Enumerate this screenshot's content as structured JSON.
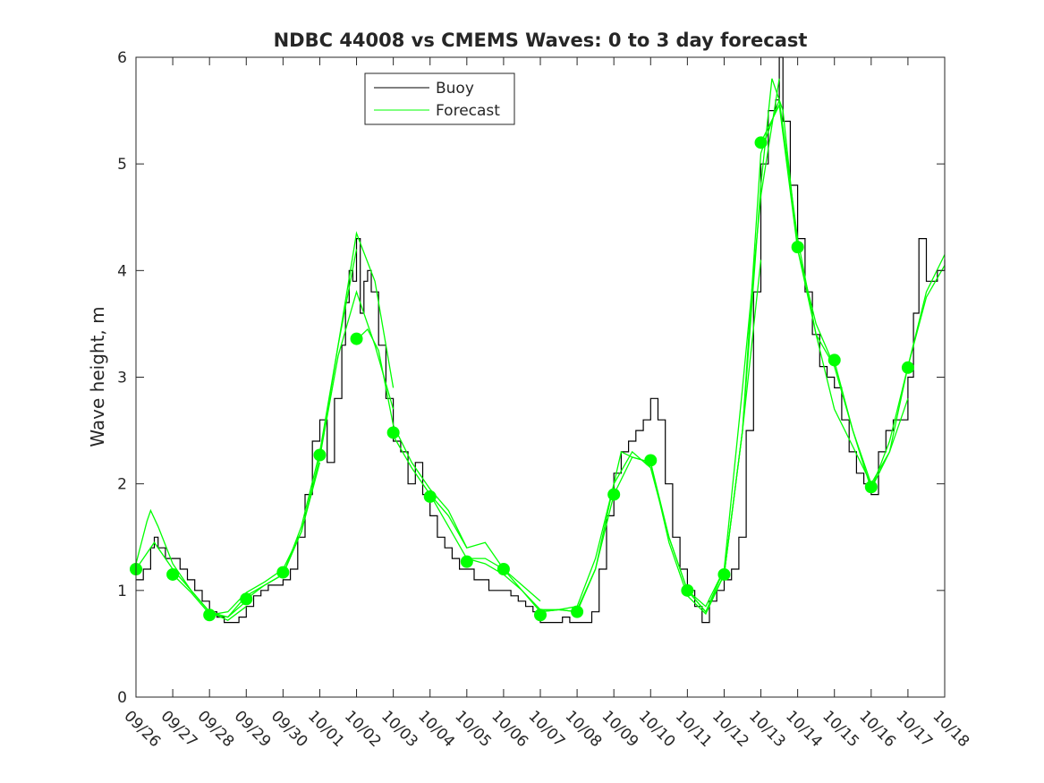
{
  "chart_data": {
    "type": "line",
    "title": "NDBC 44008 vs CMEMS Waves: 0 to 3 day forecast",
    "xlabel": "",
    "ylabel": "Wave height, m",
    "xlim": [
      0,
      22
    ],
    "ylim": [
      0,
      6
    ],
    "x_ticks": [
      "09/26",
      "09/27",
      "09/28",
      "09/29",
      "09/30",
      "10/01",
      "10/02",
      "10/03",
      "10/04",
      "10/05",
      "10/06",
      "10/07",
      "10/08",
      "10/09",
      "10/10",
      "10/11",
      "10/12",
      "10/13",
      "10/14",
      "10/15",
      "10/16",
      "10/17",
      "10/18"
    ],
    "y_ticks": [
      "0",
      "1",
      "2",
      "3",
      "4",
      "5",
      "6"
    ],
    "x_unit": "days since 09/26",
    "legend": {
      "position": "top-center",
      "entries": [
        "Buoy",
        "Forecast"
      ]
    },
    "grid": false,
    "colors": {
      "buoy": "#000000",
      "forecast": "#00ff00"
    },
    "buoy_series": {
      "name": "Buoy",
      "x": [
        0,
        0.2,
        0.4,
        0.5,
        0.6,
        0.8,
        1.0,
        1.2,
        1.4,
        1.6,
        1.8,
        2.0,
        2.2,
        2.4,
        2.6,
        2.8,
        3.0,
        3.2,
        3.4,
        3.6,
        3.8,
        4.0,
        4.2,
        4.4,
        4.6,
        4.8,
        5.0,
        5.2,
        5.4,
        5.6,
        5.7,
        5.8,
        5.9,
        6.0,
        6.1,
        6.2,
        6.3,
        6.4,
        6.6,
        6.8,
        7.0,
        7.2,
        7.4,
        7.6,
        7.8,
        8.0,
        8.2,
        8.4,
        8.6,
        8.8,
        9.0,
        9.2,
        9.4,
        9.6,
        9.8,
        10.0,
        10.2,
        10.4,
        10.6,
        10.8,
        11.0,
        11.2,
        11.4,
        11.6,
        11.8,
        12.0,
        12.2,
        12.4,
        12.6,
        12.8,
        13.0,
        13.2,
        13.4,
        13.6,
        13.8,
        14.0,
        14.2,
        14.4,
        14.6,
        14.8,
        15.0,
        15.2,
        15.4,
        15.6,
        15.8,
        16.0,
        16.2,
        16.4,
        16.6,
        16.8,
        17.0,
        17.2,
        17.4,
        17.5,
        17.6,
        17.8,
        18.0,
        18.2,
        18.4,
        18.6,
        18.8,
        19.0,
        19.2,
        19.4,
        19.6,
        19.8,
        20.0,
        20.2,
        20.4,
        20.6,
        20.8,
        21.0,
        21.15,
        21.3,
        21.5,
        21.8,
        22.0
      ],
      "values": [
        1.1,
        1.2,
        1.4,
        1.5,
        1.4,
        1.3,
        1.3,
        1.2,
        1.1,
        1.0,
        0.9,
        0.8,
        0.75,
        0.7,
        0.7,
        0.75,
        0.85,
        0.95,
        1.0,
        1.05,
        1.05,
        1.1,
        1.2,
        1.5,
        1.9,
        2.4,
        2.6,
        2.2,
        2.8,
        3.3,
        3.7,
        4.0,
        3.9,
        4.3,
        3.6,
        3.9,
        4.0,
        3.8,
        3.3,
        2.8,
        2.4,
        2.3,
        2.0,
        2.2,
        1.9,
        1.7,
        1.5,
        1.4,
        1.3,
        1.2,
        1.2,
        1.1,
        1.1,
        1.0,
        1.0,
        1.0,
        0.95,
        0.9,
        0.85,
        0.8,
        0.7,
        0.7,
        0.7,
        0.75,
        0.7,
        0.7,
        0.7,
        0.8,
        1.2,
        1.7,
        2.1,
        2.3,
        2.4,
        2.5,
        2.6,
        2.8,
        2.6,
        2.0,
        1.5,
        1.2,
        1.0,
        0.85,
        0.7,
        0.9,
        1.0,
        1.1,
        1.2,
        1.5,
        2.5,
        3.8,
        5.0,
        5.5,
        5.6,
        6.0,
        5.4,
        4.8,
        4.3,
        3.8,
        3.4,
        3.1,
        3.0,
        2.9,
        2.6,
        2.3,
        2.1,
        2.0,
        1.9,
        2.3,
        2.5,
        2.6,
        2.6,
        3.0,
        3.6,
        4.3,
        3.9,
        4.0,
        4.1
      ]
    },
    "forecast_series": [
      {
        "name": "Forecast",
        "x": [
          0,
          0.3,
          0.4,
          0.6,
          1.0,
          1.5,
          2.0,
          2.5,
          3.0
        ],
        "values": [
          1.25,
          1.65,
          1.75,
          1.6,
          1.25,
          1.0,
          0.8,
          0.75,
          0.9
        ]
      },
      {
        "name": "Forecast",
        "x": [
          0,
          0.5,
          1.0,
          1.5,
          2.0,
          2.5,
          3.0
        ],
        "values": [
          1.2,
          1.45,
          1.2,
          1.0,
          0.8,
          0.72,
          0.85
        ]
      },
      {
        "name": "Forecast",
        "x": [
          1.0,
          1.5,
          2.0,
          2.5,
          3.0,
          3.5,
          4.0
        ],
        "values": [
          1.15,
          0.98,
          0.78,
          0.75,
          0.95,
          1.05,
          1.15
        ]
      },
      {
        "name": "Forecast",
        "x": [
          2.0,
          2.5,
          3.0,
          3.5,
          4.0,
          4.5,
          5.0
        ],
        "values": [
          0.77,
          0.8,
          0.98,
          1.08,
          1.2,
          1.55,
          2.2
        ]
      },
      {
        "name": "Forecast",
        "x": [
          3.0,
          3.5,
          4.0,
          4.5,
          5.0,
          5.5,
          6.0
        ],
        "values": [
          0.92,
          1.05,
          1.15,
          1.6,
          2.3,
          3.3,
          4.2
        ]
      },
      {
        "name": "Forecast",
        "x": [
          4.0,
          4.5,
          5.0,
          5.5,
          6.0,
          6.5,
          7.0
        ],
        "values": [
          1.15,
          1.55,
          2.25,
          3.3,
          4.35,
          3.9,
          2.9
        ]
      },
      {
        "name": "Forecast",
        "x": [
          5.0,
          5.5,
          6.0,
          6.5,
          7.0
        ],
        "values": [
          2.25,
          3.2,
          3.8,
          3.3,
          2.7
        ]
      },
      {
        "name": "Forecast",
        "x": [
          6.0,
          6.3,
          6.6,
          7.0,
          7.5,
          8.0,
          8.5,
          9.0
        ],
        "values": [
          3.35,
          3.45,
          3.25,
          2.55,
          2.2,
          1.95,
          1.75,
          1.4
        ]
      },
      {
        "name": "Forecast",
        "x": [
          7.0,
          7.5,
          8.0,
          8.5,
          9.0,
          9.5,
          10.0
        ],
        "values": [
          2.45,
          2.15,
          1.9,
          1.6,
          1.3,
          1.3,
          1.2
        ]
      },
      {
        "name": "Forecast",
        "x": [
          8.0,
          8.5,
          9.0,
          9.5,
          10.0,
          10.5,
          11.0
        ],
        "values": [
          1.9,
          1.7,
          1.4,
          1.45,
          1.2,
          1.05,
          0.9
        ]
      },
      {
        "name": "Forecast",
        "x": [
          9.0,
          9.5,
          10.0,
          10.5,
          11.0,
          11.5,
          12.0
        ],
        "values": [
          1.3,
          1.25,
          1.15,
          1.0,
          0.82,
          0.82,
          0.8
        ]
      },
      {
        "name": "Forecast",
        "x": [
          10.0,
          10.5,
          11.0,
          11.5,
          12.0,
          12.5,
          13.0
        ],
        "values": [
          1.2,
          1.0,
          0.8,
          0.82,
          0.8,
          1.2,
          1.9
        ]
      },
      {
        "name": "Forecast",
        "x": [
          11.0,
          11.5,
          12.0,
          12.5,
          13.0,
          13.2,
          13.5,
          14.0
        ],
        "values": [
          0.8,
          0.82,
          0.85,
          1.3,
          2.0,
          2.3,
          2.25,
          2.2
        ]
      },
      {
        "name": "Forecast",
        "x": [
          12.0,
          12.5,
          13.0,
          13.5,
          14.0,
          14.5,
          15.0,
          15.5,
          16.0
        ],
        "values": [
          0.82,
          1.2,
          2.0,
          2.3,
          2.15,
          1.5,
          1.0,
          0.8,
          1.2
        ]
      },
      {
        "name": "Forecast",
        "x": [
          13.0,
          13.5,
          14.0,
          14.5,
          15.0,
          15.5,
          16.0,
          16.5,
          17.0
        ],
        "values": [
          1.9,
          2.25,
          2.2,
          1.45,
          0.95,
          0.78,
          1.15,
          2.5,
          4.1
        ]
      },
      {
        "name": "Forecast",
        "x": [
          14.0,
          14.5,
          15.0,
          15.5,
          16.0,
          16.5,
          17.0,
          17.5
        ],
        "values": [
          2.2,
          1.5,
          1.0,
          0.85,
          1.2,
          2.9,
          4.7,
          5.8
        ]
      },
      {
        "name": "Forecast",
        "x": [
          15.0,
          15.5,
          16.0,
          16.5,
          17.0,
          17.3,
          17.6,
          18.0
        ],
        "values": [
          1.0,
          0.8,
          1.15,
          2.5,
          4.8,
          5.8,
          5.5,
          4.2
        ]
      },
      {
        "name": "Forecast",
        "x": [
          16.0,
          16.5,
          17.0,
          17.5,
          18.0,
          18.5,
          19.0
        ],
        "values": [
          1.15,
          2.5,
          5.1,
          5.6,
          4.3,
          3.4,
          3.1
        ]
      },
      {
        "name": "Forecast",
        "x": [
          17.0,
          17.5,
          18.0,
          18.5,
          19.0,
          19.5,
          20.0
        ],
        "values": [
          5.2,
          5.55,
          4.2,
          3.5,
          3.1,
          2.5,
          2.0
        ]
      },
      {
        "name": "Forecast",
        "x": [
          18.0,
          18.5,
          19.0,
          19.5,
          20.0,
          20.5,
          21.0
        ],
        "values": [
          4.2,
          3.4,
          2.7,
          2.35,
          2.0,
          2.3,
          2.8
        ]
      },
      {
        "name": "Forecast",
        "x": [
          19.0,
          19.5,
          20.0,
          20.5,
          21.0,
          21.5,
          22.0
        ],
        "values": [
          3.15,
          2.5,
          1.95,
          2.3,
          3.1,
          3.8,
          4.15
        ]
      },
      {
        "name": "Forecast",
        "x": [
          20.0,
          20.5,
          21.0,
          21.5,
          22.0
        ],
        "values": [
          1.95,
          2.4,
          3.1,
          3.75,
          4.05
        ]
      }
    ],
    "forecast_points": {
      "x": [
        0,
        1,
        2,
        3,
        4,
        5,
        6,
        7,
        8,
        9,
        10,
        11,
        12,
        13,
        14,
        15,
        16,
        17,
        18,
        19,
        20,
        21
      ],
      "values": [
        1.2,
        1.15,
        0.77,
        0.92,
        1.17,
        2.27,
        3.36,
        2.48,
        1.88,
        1.27,
        1.2,
        0.77,
        0.8,
        1.9,
        2.22,
        1.0,
        1.15,
        5.2,
        4.22,
        3.16,
        1.97,
        3.09
      ]
    }
  }
}
